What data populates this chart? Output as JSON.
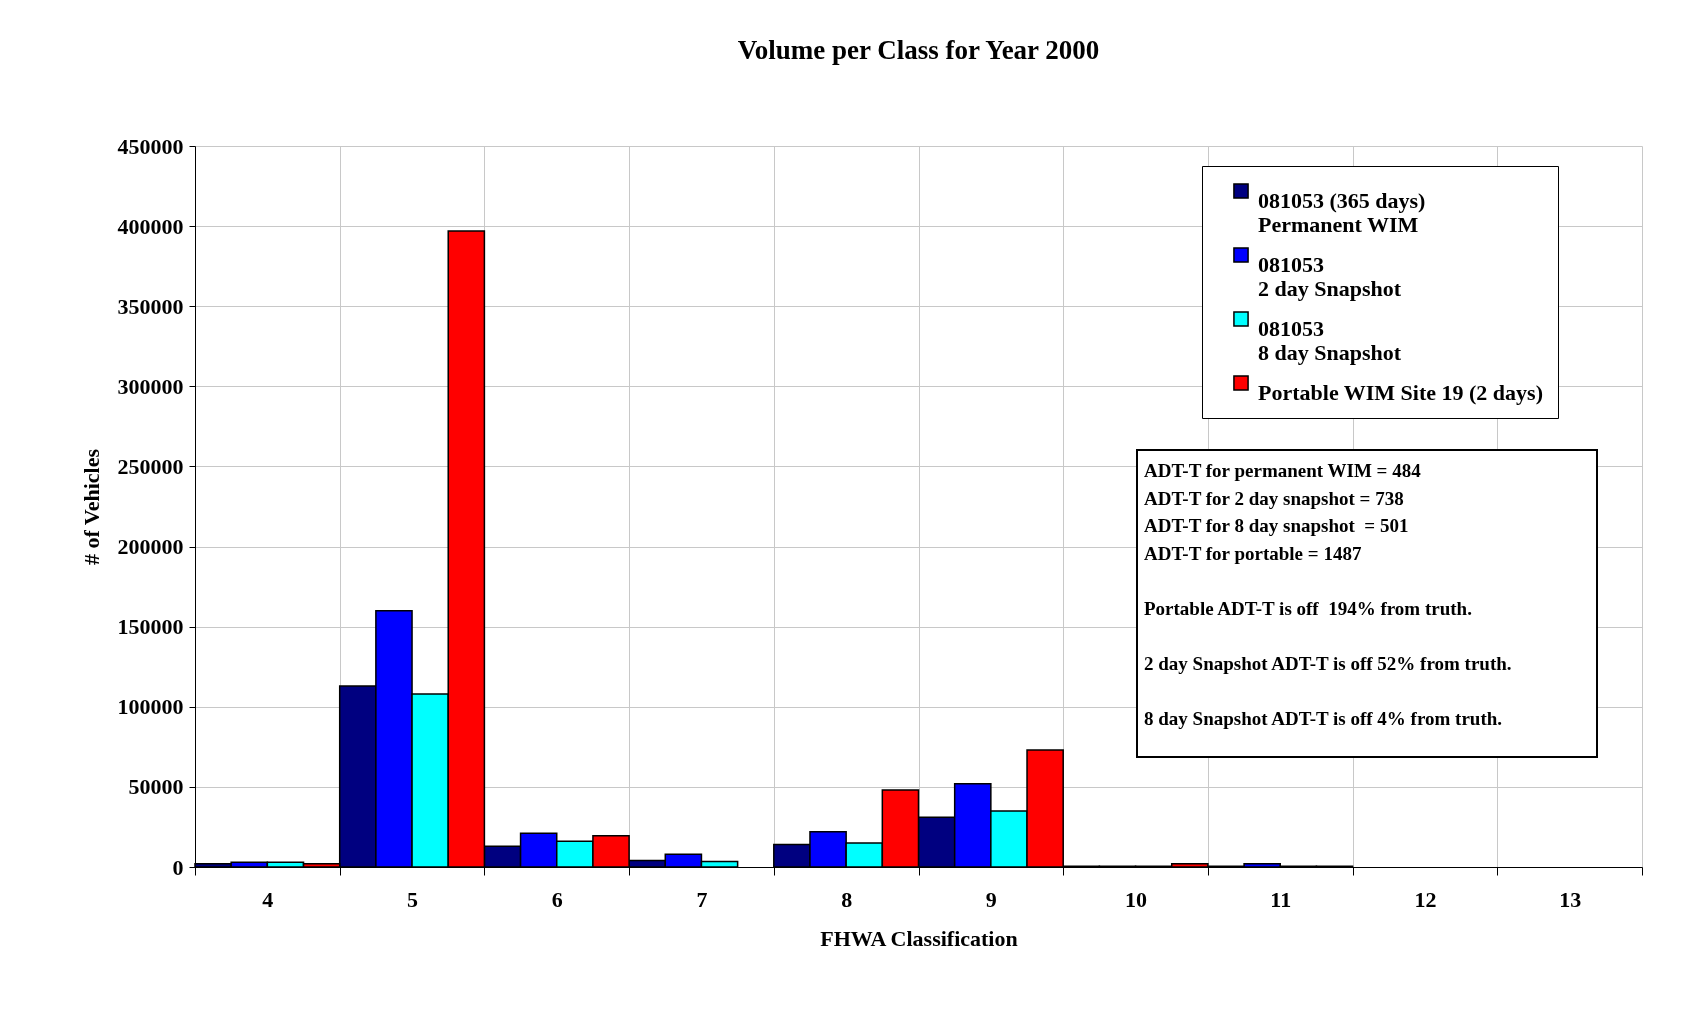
{
  "chart_data": {
    "type": "bar",
    "title": "Volume per Class for Year 2000",
    "xlabel": "FHWA Classification",
    "ylabel": "# of Vehicles",
    "categories": [
      "4",
      "5",
      "6",
      "7",
      "8",
      "9",
      "10",
      "11",
      "12",
      "13"
    ],
    "series": [
      {
        "name": "081053 (365 days)\nPermanent WIM",
        "color": "#000080",
        "values": [
          2000,
          113000,
          13000,
          4000,
          14000,
          31000,
          500,
          500,
          null,
          null
        ]
      },
      {
        "name": "081053\n2 day Snapshot",
        "color": "#0000ff",
        "values": [
          3000,
          160000,
          21000,
          8000,
          22000,
          52000,
          500,
          2000,
          null,
          null
        ]
      },
      {
        "name": "081053\n8 day Snapshot",
        "color": "#00ffff",
        "values": [
          3000,
          108000,
          16000,
          3500,
          15000,
          35000,
          500,
          500,
          null,
          null
        ]
      },
      {
        "name": "Portable WIM Site 19 (2 days)",
        "color": "#ff0000",
        "values": [
          2000,
          397000,
          19500,
          null,
          48000,
          73000,
          2000,
          500,
          null,
          null
        ]
      }
    ],
    "ylim": [
      0,
      450000
    ],
    "yticks": [
      0,
      50000,
      100000,
      150000,
      200000,
      250000,
      300000,
      350000,
      400000,
      450000
    ],
    "grid": true,
    "legend": "top right",
    "annotations": [
      "ADT-T for permanent WIM = 484",
      "ADT-T for 2 day snapshot = 738",
      "ADT-T for 8 day snapshot  = 501",
      "ADT-T for portable = 1487",
      "Portable ADT-T is off  194% from truth.",
      "2 day Snapshot ADT-T is off 52% from truth.",
      "8 day Snapshot ADT-T is off 4% from truth."
    ]
  }
}
